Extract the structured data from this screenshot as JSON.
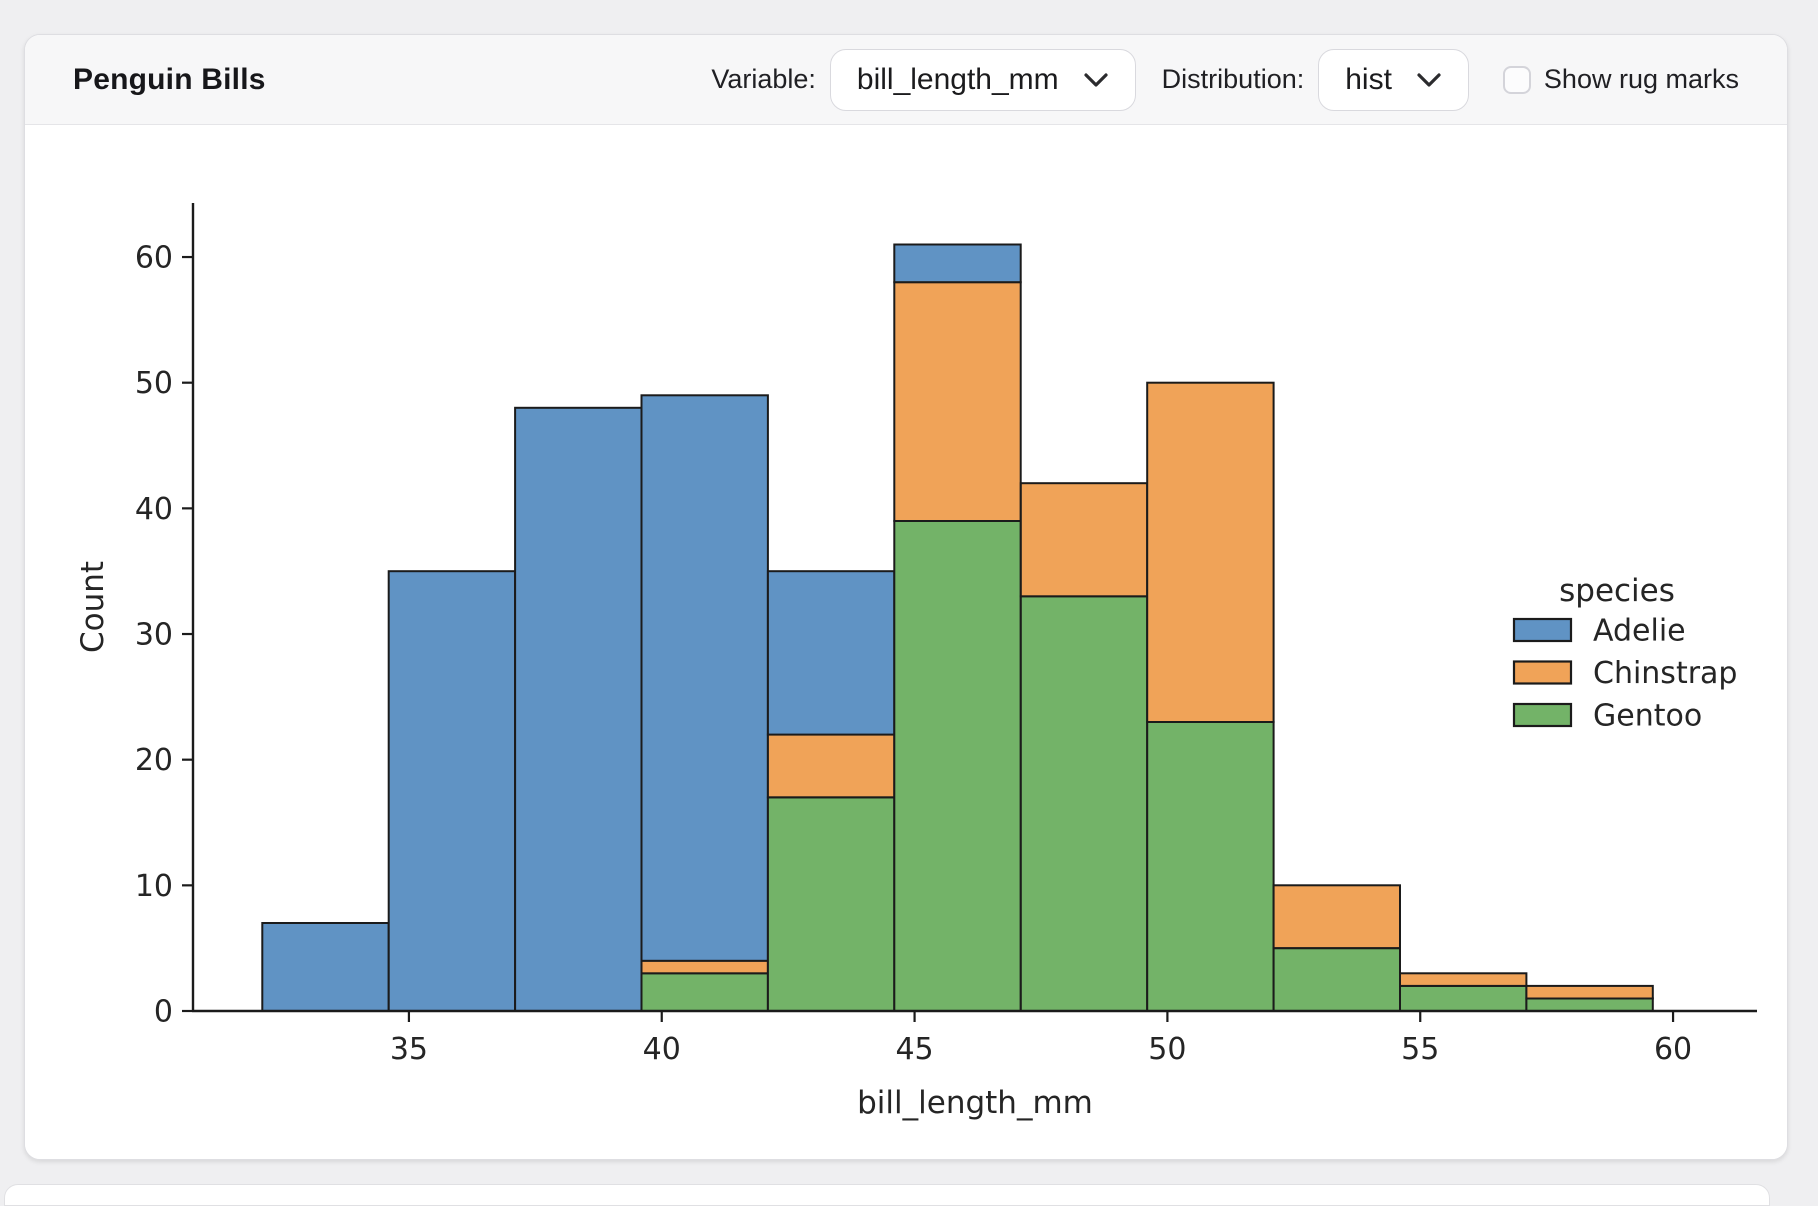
{
  "header": {
    "title": "Penguin Bills",
    "variable_label": "Variable:",
    "variable_value": "bill_length_mm",
    "distribution_label": "Distribution:",
    "distribution_value": "hist",
    "rug_checkbox": {
      "label": "Show rug marks",
      "checked": false
    }
  },
  "chart_data": {
    "type": "bar",
    "subtype": "stacked-histogram",
    "title": "",
    "xlabel": "bill_length_mm",
    "ylabel": "Count",
    "bin_edges": [
      32.1,
      34.6,
      37.1,
      39.6,
      42.1,
      44.6,
      47.1,
      49.6,
      52.1,
      54.6,
      57.1,
      59.6
    ],
    "series": [
      {
        "name": "Adelie",
        "color": "#6093C4",
        "values": [
          7,
          35,
          48,
          45,
          13,
          3,
          0,
          0,
          0,
          0,
          0
        ]
      },
      {
        "name": "Chinstrap",
        "color": "#F0A358",
        "values": [
          0,
          0,
          0,
          1,
          5,
          19,
          9,
          27,
          5,
          1,
          1
        ]
      },
      {
        "name": "Gentoo",
        "color": "#73B368",
        "values": [
          0,
          0,
          0,
          3,
          17,
          39,
          33,
          23,
          5,
          2,
          1
        ]
      }
    ],
    "bin_totals": [
      7,
      35,
      48,
      49,
      35,
      61,
      42,
      50,
      10,
      3,
      2
    ],
    "stack_order_bottom_to_top": [
      "Gentoo",
      "Chinstrap",
      "Adelie"
    ],
    "xticks": [
      35,
      40,
      45,
      50,
      55,
      60
    ],
    "yticks": [
      0,
      10,
      20,
      30,
      40,
      50,
      60
    ],
    "xlim": [
      30.73,
      61.66
    ],
    "ylim": [
      0,
      64.3
    ],
    "legend_title": "species",
    "legend_position": "center-right",
    "edge_color": "#1b1b1b",
    "axis_color": "#1b1b1b",
    "text_color": "#252525",
    "grid": false
  }
}
